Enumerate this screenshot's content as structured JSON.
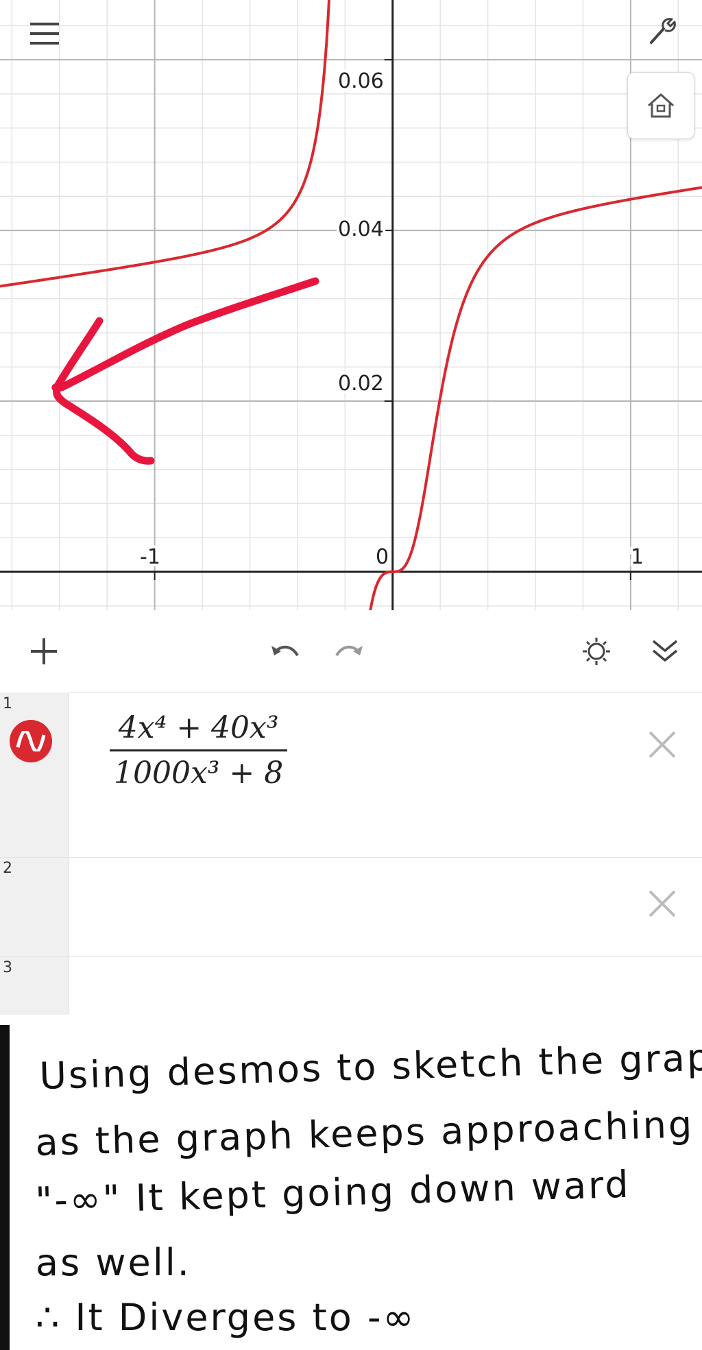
{
  "graph": {
    "y_ticks": [
      "0.06",
      "0.04",
      "0.02"
    ],
    "x_ticks": [
      "-1",
      "0",
      "1"
    ],
    "curve_color": "#d9282f",
    "annotation_arrow_color": "#e8163f"
  },
  "chart_data": {
    "type": "line",
    "series": [
      {
        "name": "",
        "expression": "(4x^4+40x^3)/(1000x^3+8)"
      }
    ],
    "xlim": [
      -1.65,
      1.3
    ],
    "ylim": [
      -0.0045,
      0.067
    ],
    "x_ticks": [
      -1,
      0,
      1
    ],
    "y_ticks": [
      0.02,
      0.04,
      0.06
    ],
    "grid": true
  },
  "top_bar": {
    "menu_icon": "hamburger-menu-icon",
    "settings_icon": "wrench-icon",
    "home_icon": "home-icon"
  },
  "toolbar": {
    "add_icon": "plus-icon",
    "undo_icon": "undo-icon",
    "redo_icon": "redo-icon",
    "settings_icon": "gear-icon",
    "collapse_icon": "double-chevron-down-icon"
  },
  "expressions": [
    {
      "number": "1",
      "numerator": "4x⁴ + 40x³",
      "denominator": "1000x³ + 8",
      "color": "#d9282f"
    },
    {
      "number": "2"
    },
    {
      "number": "3"
    }
  ],
  "note": {
    "lines": [
      "Using desmos to sketch the graph",
      "as the graph keeps approaching left",
      "\"-∞\" It kept going down ward",
      "as well.",
      "∴ It Diverges to -∞"
    ]
  }
}
